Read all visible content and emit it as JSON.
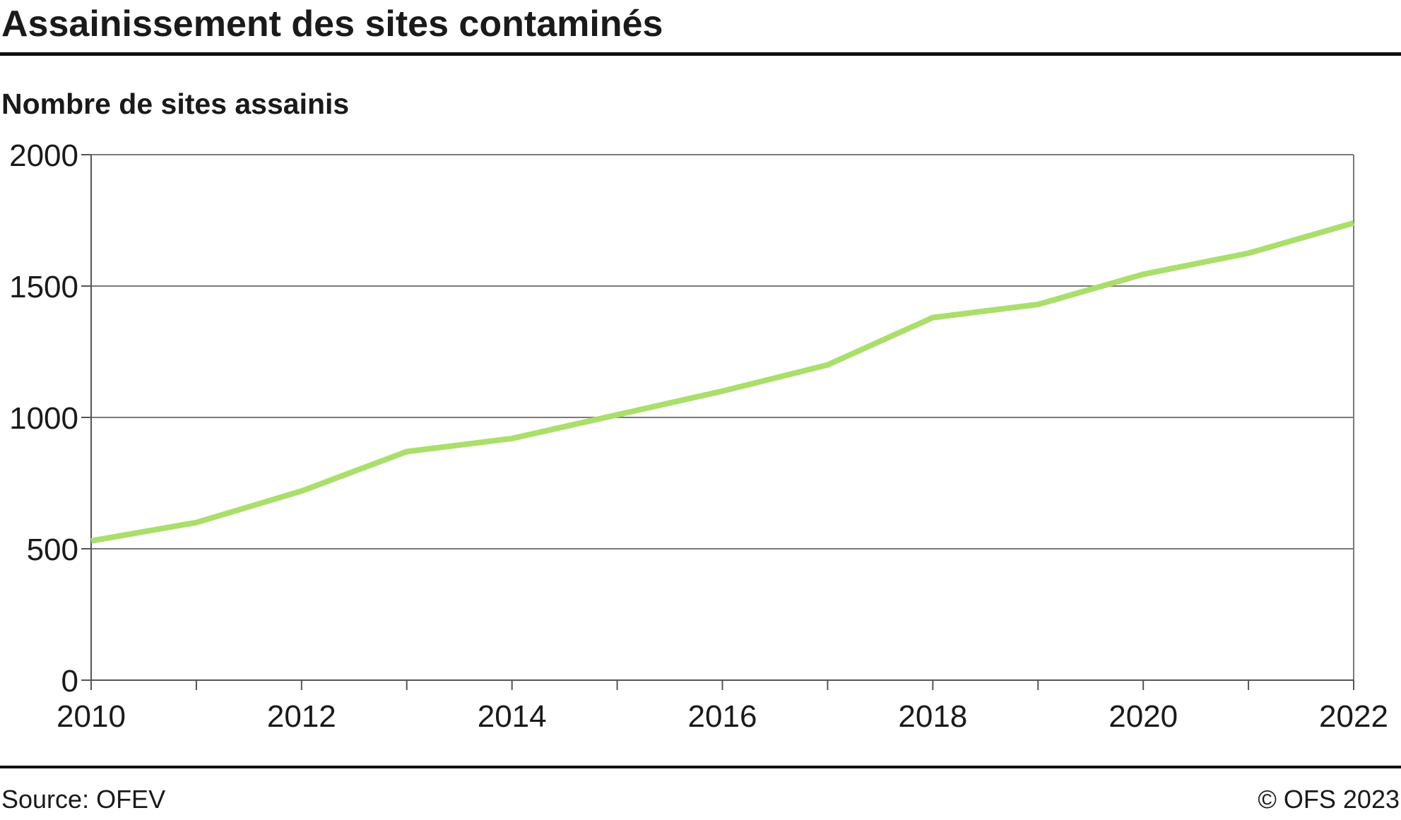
{
  "title": "Assainissement des sites contaminés",
  "subtitle": "Nombre de sites assainis",
  "source": "Source: OFEV",
  "copyright": "© OFS 2023",
  "colors": {
    "line": "#a9df6a",
    "grid": "#7a7a7a",
    "axis": "#555555",
    "rule": "#111111"
  },
  "chart_data": {
    "type": "line",
    "title": "Assainissement des sites contaminés",
    "subtitle": "Nombre de sites assainis",
    "x": [
      2010,
      2011,
      2012,
      2013,
      2014,
      2015,
      2016,
      2017,
      2018,
      2019,
      2020,
      2021,
      2022
    ],
    "series": [
      {
        "values": [
          530,
          600,
          720,
          870,
          920,
          1010,
          1100,
          1200,
          1380,
          1430,
          1545,
          1625,
          1740
        ]
      }
    ],
    "xlim": [
      2010,
      2022
    ],
    "ylim": [
      0,
      2000
    ],
    "x_ticks": [
      2010,
      2011,
      2012,
      2013,
      2014,
      2015,
      2016,
      2017,
      2018,
      2019,
      2020,
      2021,
      2022
    ],
    "x_tick_labels": [
      "2010",
      "2012",
      "2014",
      "2016",
      "2018",
      "2020",
      "2022"
    ],
    "y_ticks": [
      0,
      500,
      1000,
      1500,
      2000
    ],
    "grid": true,
    "legend": "none"
  }
}
